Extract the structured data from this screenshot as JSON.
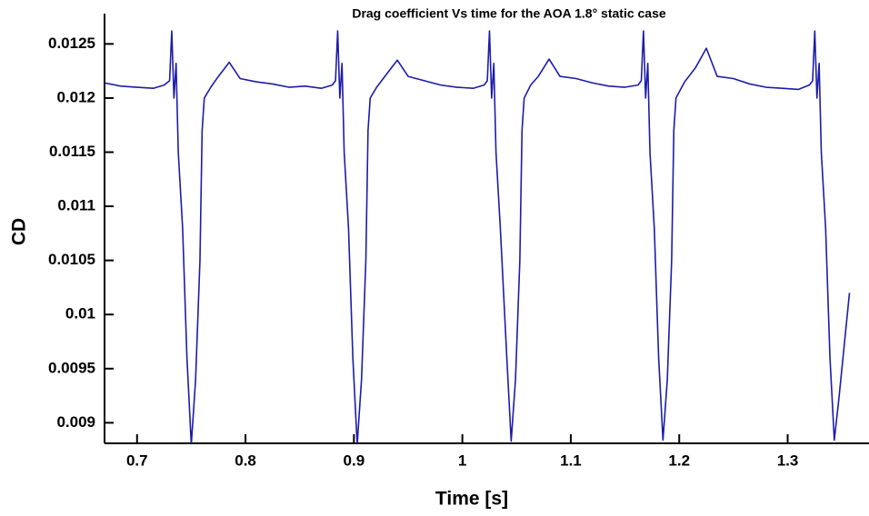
{
  "chart_data": {
    "type": "line",
    "title": "Drag coefficient Vs time for the AOA 1.8° static case",
    "x_label": "Time [s]",
    "y_label": "CD",
    "xlim": [
      0.67,
      1.375
    ],
    "ylim": [
      0.00881,
      0.01278
    ],
    "xticks": [
      0.7,
      0.8,
      0.9,
      1,
      1.1,
      1.2,
      1.3
    ],
    "yticks": [
      0.009,
      0.0095,
      0.01,
      0.0105,
      0.011,
      0.0115,
      0.012,
      0.0125
    ],
    "grid": false,
    "x": [
      0.67,
      0.685,
      0.7,
      0.715,
      0.725,
      0.73,
      0.732,
      0.734,
      0.736,
      0.738,
      0.742,
      0.746,
      0.75,
      0.754,
      0.758,
      0.76,
      0.762,
      0.768,
      0.775,
      0.785,
      0.795,
      0.81,
      0.825,
      0.84,
      0.855,
      0.87,
      0.88,
      0.883,
      0.885,
      0.887,
      0.889,
      0.891,
      0.895,
      0.899,
      0.903,
      0.907,
      0.911,
      0.913,
      0.915,
      0.921,
      0.93,
      0.94,
      0.95,
      0.965,
      0.98,
      0.995,
      1.01,
      1.02,
      1.023,
      1.025,
      1.027,
      1.029,
      1.031,
      1.035,
      1.041,
      1.045,
      1.049,
      1.053,
      1.055,
      1.057,
      1.063,
      1.07,
      1.08,
      1.09,
      1.105,
      1.12,
      1.135,
      1.15,
      1.162,
      1.165,
      1.167,
      1.169,
      1.171,
      1.173,
      1.177,
      1.181,
      1.185,
      1.189,
      1.193,
      1.195,
      1.197,
      1.205,
      1.215,
      1.225,
      1.235,
      1.25,
      1.265,
      1.28,
      1.295,
      1.31,
      1.32,
      1.323,
      1.325,
      1.327,
      1.329,
      1.331,
      1.335,
      1.339,
      1.343,
      1.347,
      1.351,
      1.355,
      1.357
    ],
    "series": [
      {
        "name": "CD",
        "color": "#1c1caa",
        "values": [
          0.01214,
          0.01211,
          0.0121,
          0.01209,
          0.01212,
          0.01216,
          0.01262,
          0.012,
          0.01232,
          0.0115,
          0.0108,
          0.0096,
          0.0088,
          0.0094,
          0.0105,
          0.0117,
          0.012,
          0.0121,
          0.0122,
          0.01233,
          0.01218,
          0.01215,
          0.01213,
          0.0121,
          0.01211,
          0.01209,
          0.01212,
          0.01216,
          0.01262,
          0.012,
          0.01232,
          0.0115,
          0.0108,
          0.0096,
          0.0088,
          0.0094,
          0.0105,
          0.0117,
          0.012,
          0.0121,
          0.01222,
          0.01235,
          0.0122,
          0.01216,
          0.01212,
          0.0121,
          0.01209,
          0.01212,
          0.01216,
          0.01262,
          0.012,
          0.01232,
          0.0115,
          0.0108,
          0.0096,
          0.00883,
          0.0094,
          0.0105,
          0.0117,
          0.012,
          0.01212,
          0.0122,
          0.01236,
          0.0122,
          0.01218,
          0.01214,
          0.01211,
          0.0121,
          0.01212,
          0.01216,
          0.01262,
          0.012,
          0.01232,
          0.0115,
          0.0108,
          0.0096,
          0.00884,
          0.0094,
          0.0105,
          0.0117,
          0.012,
          0.01215,
          0.01228,
          0.01246,
          0.0122,
          0.01218,
          0.01213,
          0.0121,
          0.01209,
          0.01208,
          0.01212,
          0.01216,
          0.01262,
          0.012,
          0.01232,
          0.0115,
          0.0108,
          0.0096,
          0.00884,
          0.0092,
          0.0096,
          0.01,
          0.0102
        ]
      }
    ]
  }
}
